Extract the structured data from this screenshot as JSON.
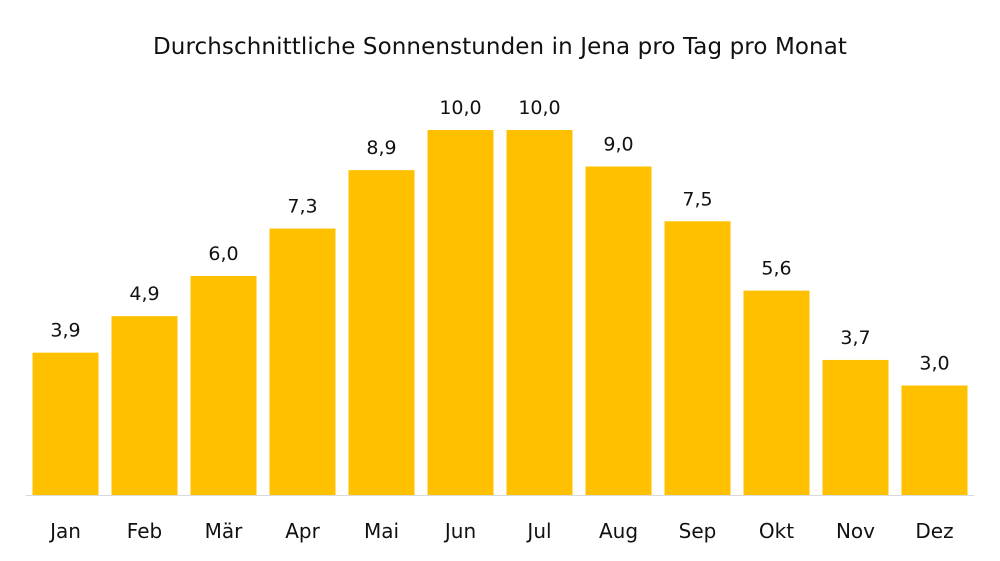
{
  "chart_data": {
    "type": "bar",
    "title": "Durchschnittliche Sonnenstunden in Jena pro Tag pro Monat",
    "categories": [
      "Jan",
      "Feb",
      "Mär",
      "Apr",
      "Mai",
      "Jun",
      "Jul",
      "Aug",
      "Sep",
      "Okt",
      "Nov",
      "Dez"
    ],
    "values": [
      3.9,
      4.9,
      6.0,
      7.3,
      8.9,
      10.0,
      10.0,
      9.0,
      7.5,
      5.6,
      3.7,
      3.0
    ],
    "value_labels": [
      "3,9",
      "4,9",
      "6,0",
      "7,3",
      "8,9",
      "10,0",
      "10,0",
      "9,0",
      "7,5",
      "5,6",
      "3,7",
      "3,0"
    ],
    "xlabel": "",
    "ylabel": "",
    "ylim": [
      0,
      10
    ],
    "grid": false,
    "bar_color": "#FFC000",
    "axis_color": "#D9D9D9"
  }
}
